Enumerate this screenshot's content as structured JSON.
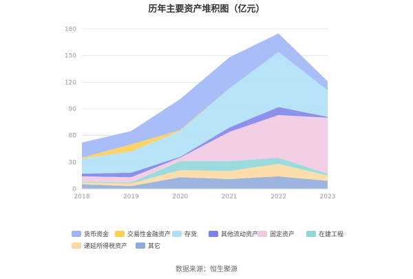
{
  "chart_data": {
    "type": "area",
    "stacked": true,
    "title": "历年主要资产堆积图（亿元）",
    "x": [
      "2018",
      "2019",
      "2020",
      "2021",
      "2022",
      "2023"
    ],
    "ylim": [
      0,
      180
    ],
    "yticks": [
      "0",
      "30",
      "60",
      "90",
      "120",
      "150",
      "180"
    ],
    "grid": true,
    "legend_position": "bottom",
    "series": [
      {
        "name": "其它",
        "color": "#8faadc",
        "values": [
          5,
          3,
          13,
          11,
          14,
          9
        ]
      },
      {
        "name": "递延所得税资产",
        "color": "#fcd9a1",
        "values": [
          2,
          3,
          8,
          9,
          14,
          6
        ]
      },
      {
        "name": "在建工程",
        "color": "#8ed6d8",
        "values": [
          1,
          1,
          10,
          11,
          7,
          2
        ]
      },
      {
        "name": "固定资产",
        "color": "#f0c8e0",
        "values": [
          6,
          6,
          4,
          33,
          48,
          63
        ]
      },
      {
        "name": "其他流动资产",
        "color": "#7d82ea",
        "values": [
          3,
          5,
          1,
          5,
          9,
          1
        ]
      },
      {
        "name": "存货",
        "color": "#aee0f8",
        "values": [
          17,
          24,
          29,
          44,
          62,
          30
        ]
      },
      {
        "name": "交易性金融资产",
        "color": "#ffcd57",
        "values": [
          1,
          8,
          1,
          0,
          0,
          0
        ]
      },
      {
        "name": "货币资金",
        "color": "#9db5f7",
        "values": [
          17,
          15,
          35,
          35,
          21,
          10
        ]
      }
    ],
    "legend_order": [
      "货币资金",
      "交易性金融资产",
      "存货",
      "其他流动资产",
      "固定资产",
      "在建工程",
      "递延所得税资产",
      "其它"
    ]
  },
  "footer": {
    "source": "数据来源：恒生聚源"
  }
}
